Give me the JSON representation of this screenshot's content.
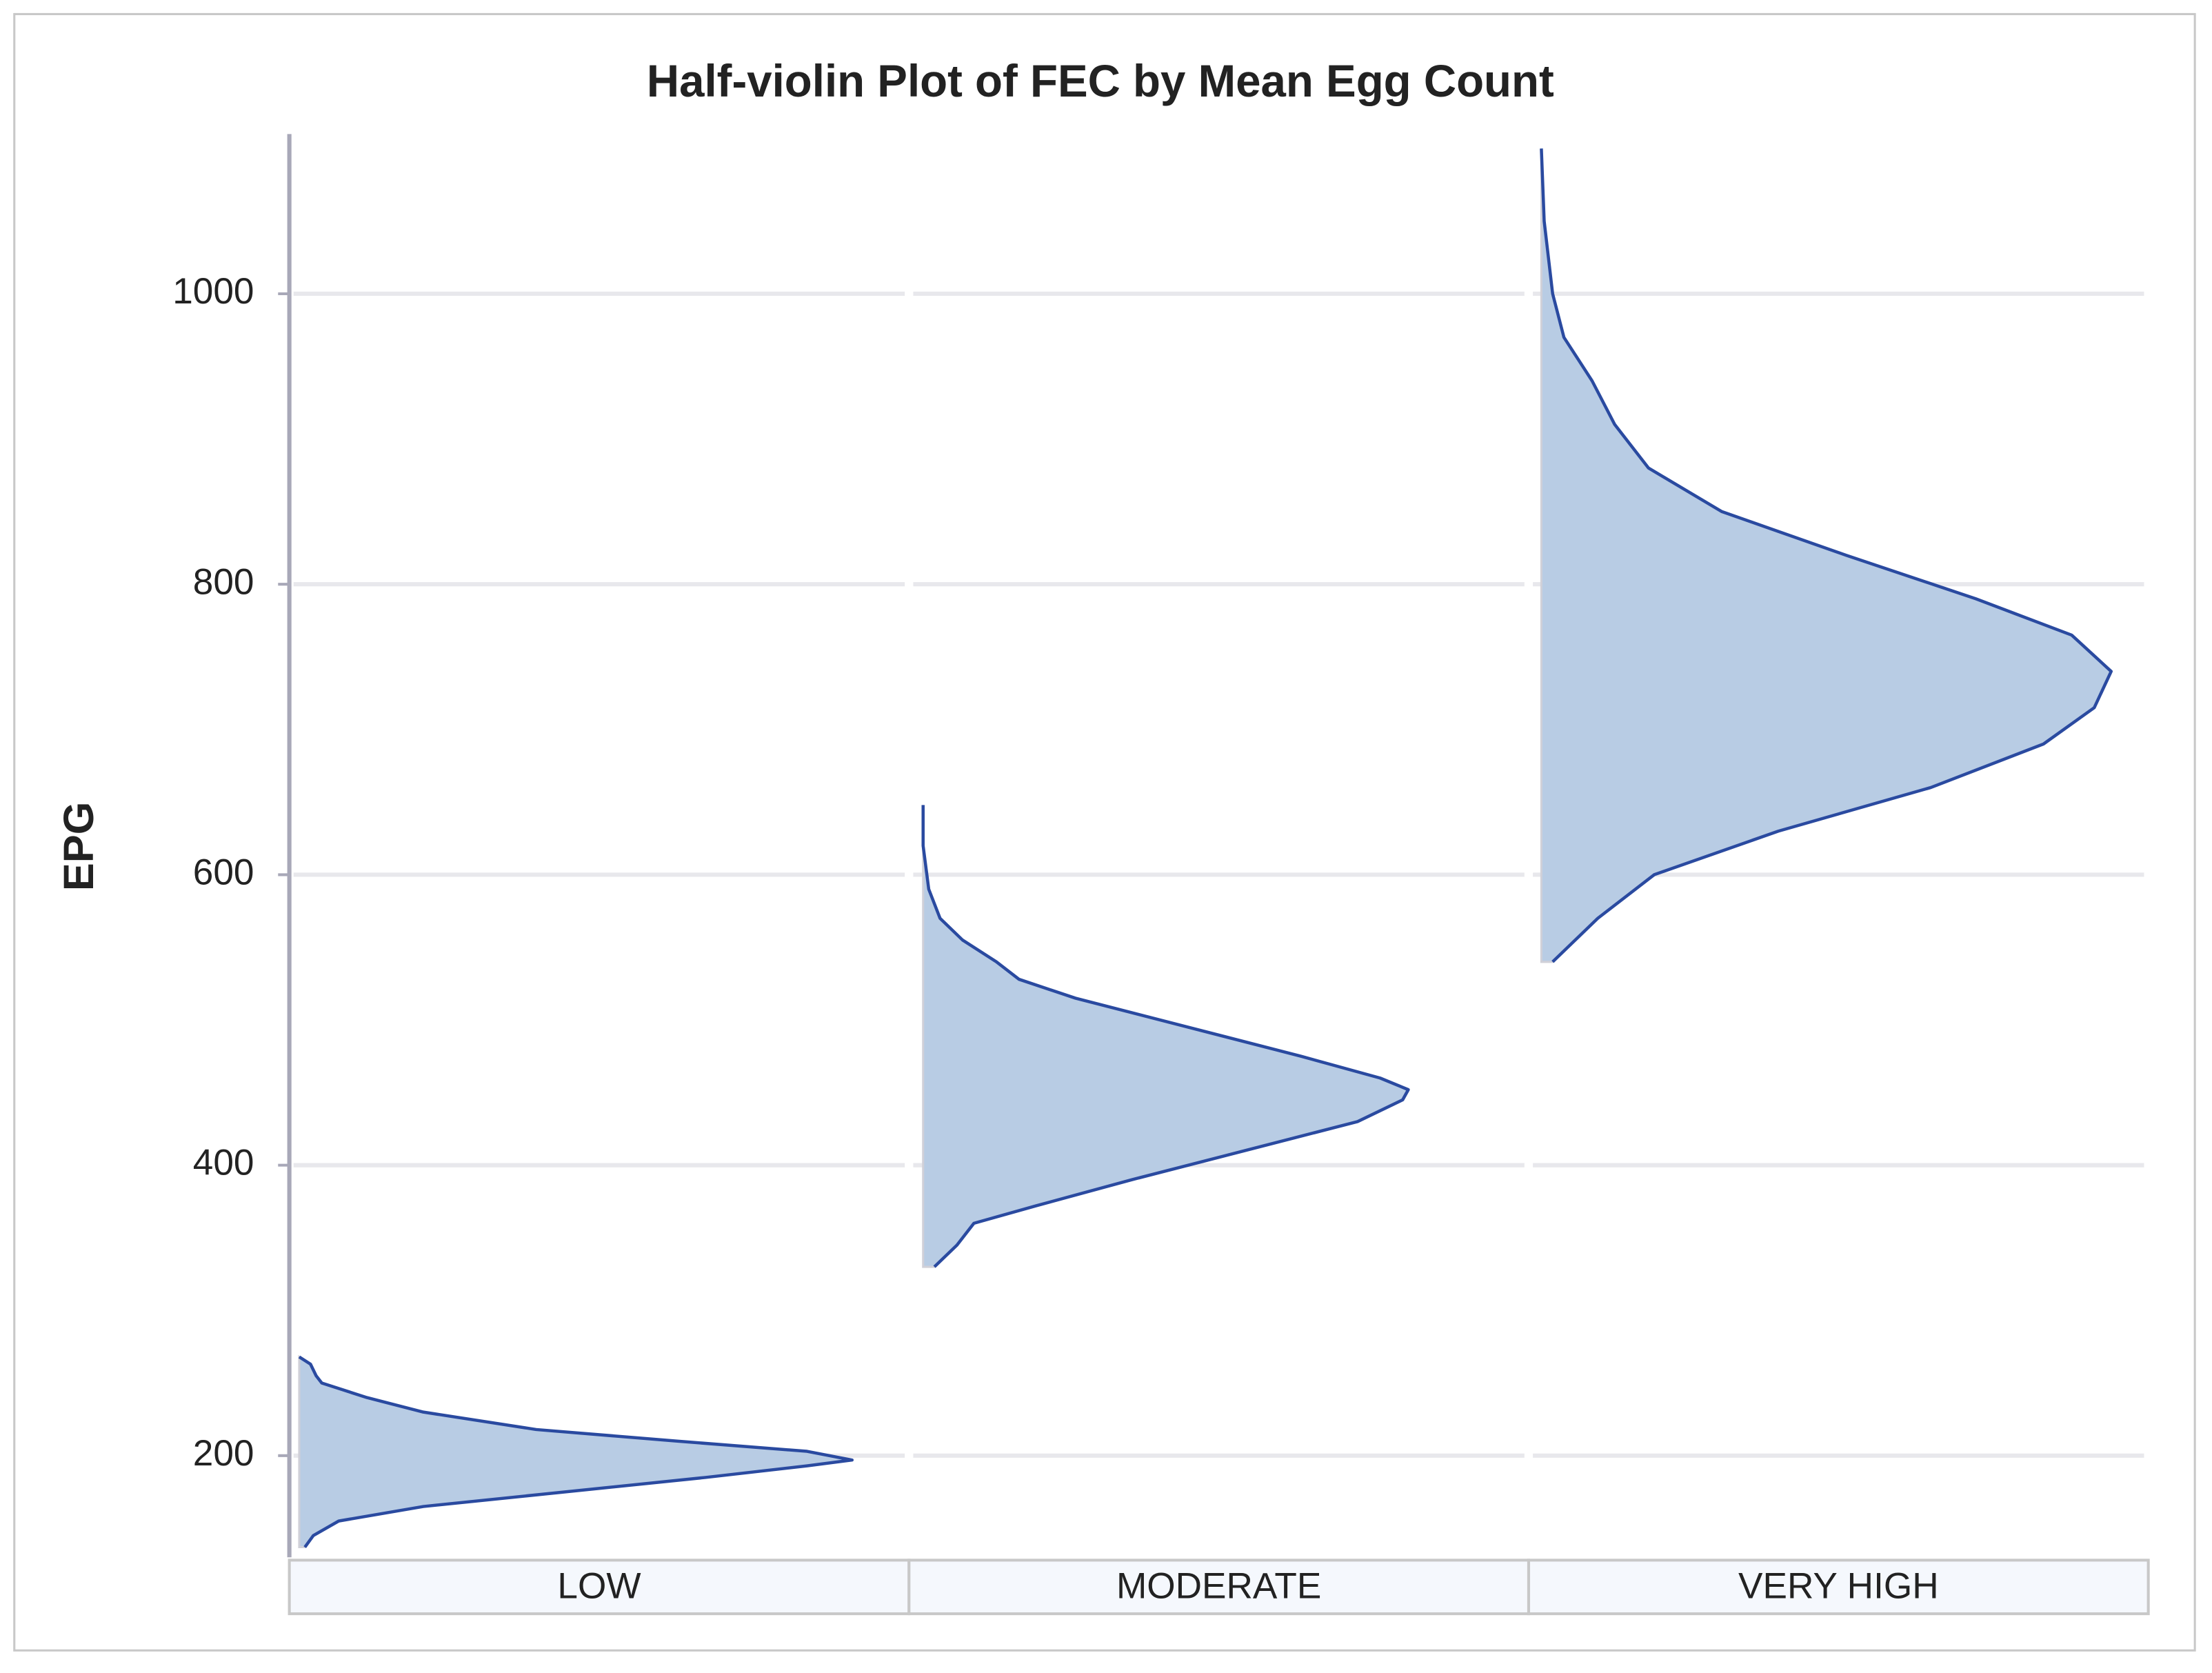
{
  "chart_data": {
    "type": "half-violin",
    "title": "Half-violin Plot of FEC by Mean Egg Count",
    "y_label": "EPG",
    "categories": [
      "LOW",
      "MODERATE",
      "VERY HIGH"
    ],
    "fill_color": "#b8cce4",
    "line_color": "#2a4aa0",
    "ylim": [
      130,
      1110
    ],
    "yticks": [
      200,
      400,
      600,
      800,
      1000
    ],
    "grid": true,
    "violins": [
      {
        "y": [
          137,
          145,
          155,
          165,
          175,
          185,
          193,
          197,
          203,
          210,
          218,
          230,
          240,
          250,
          255,
          263,
          268
        ],
        "density": [
          0.01,
          0.025,
          0.07,
          0.22,
          0.47,
          0.72,
          0.9,
          0.98,
          0.9,
          0.67,
          0.42,
          0.22,
          0.12,
          0.04,
          0.03,
          0.02,
          0
        ]
      },
      {
        "y": [
          330,
          345,
          360,
          372,
          390,
          410,
          430,
          445,
          452,
          460,
          475,
          495,
          515,
          528,
          540,
          555,
          570,
          590,
          620,
          648
        ],
        "density": [
          0.02,
          0.06,
          0.09,
          0.2,
          0.37,
          0.57,
          0.77,
          0.85,
          0.86,
          0.81,
          0.67,
          0.47,
          0.27,
          0.17,
          0.13,
          0.07,
          0.03,
          0.01,
          0,
          0
        ]
      },
      {
        "y": [
          540,
          570,
          600,
          630,
          660,
          690,
          715,
          740,
          765,
          790,
          820,
          850,
          880,
          910,
          940,
          970,
          1000,
          1050,
          1100
        ],
        "density": [
          0.02,
          0.1,
          0.2,
          0.42,
          0.69,
          0.89,
          0.98,
          1.01,
          0.94,
          0.77,
          0.54,
          0.32,
          0.19,
          0.13,
          0.09,
          0.04,
          0.02,
          0.005,
          0
        ]
      }
    ]
  }
}
